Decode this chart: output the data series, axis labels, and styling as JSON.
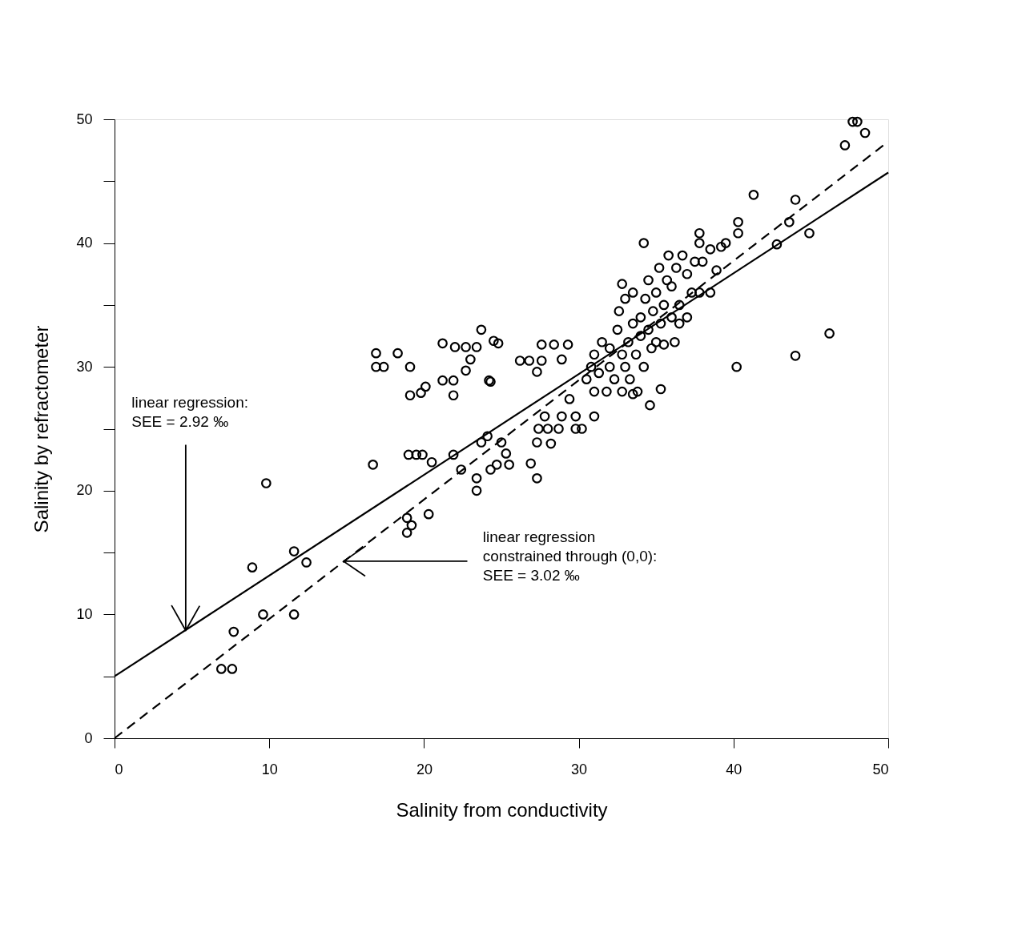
{
  "chart_data": {
    "type": "scatter",
    "xlabel": "Salinity from conductivity",
    "ylabel": "Salinity by refractometer",
    "xlim": [
      0,
      50
    ],
    "ylim": [
      0,
      50
    ],
    "xticks": [
      0,
      10,
      20,
      30,
      40,
      50
    ],
    "yticks": [
      0,
      {
        "value": 5,
        "label": null
      },
      10,
      {
        "value": 15,
        "label": null
      },
      20,
      {
        "value": 25,
        "label": null
      },
      30,
      {
        "value": 35,
        "label": null
      },
      40,
      {
        "value": 45,
        "label": null
      },
      50
    ],
    "grid": false,
    "series": [
      {
        "type": "scatter",
        "marker": "circle",
        "color": "#000000",
        "x": [
          6.9,
          7.6,
          7.7,
          8.9,
          9.6,
          9.8,
          11.6,
          11.6,
          12.4,
          16.7,
          16.9,
          16.9,
          17.4,
          18.3,
          19.1,
          19.1,
          19.8,
          20.1,
          18.9,
          18.9,
          19.2,
          19.0,
          19.5,
          19.9,
          20.3,
          20.5,
          21.2,
          21.2,
          21.9,
          21.9,
          21.9,
          22.0,
          22.4,
          22.7,
          22.7,
          23.0,
          23.4,
          23.4,
          23.4,
          23.7,
          23.7,
          24.1,
          24.2,
          24.5,
          24.3,
          24.8,
          24.3,
          24.7,
          25.0,
          25.3,
          25.5,
          26.2,
          26.8,
          26.9,
          27.3,
          27.3,
          27.3,
          27.6,
          27.6,
          28.4,
          28.9,
          29.3,
          27.4,
          28.0,
          27.8,
          28.2,
          28.7,
          28.9,
          29.4,
          29.8,
          29.8,
          30.2,
          31.0,
          30.5,
          30.8,
          31.0,
          31.0,
          31.3,
          31.5,
          31.8,
          32.0,
          32.0,
          32.3,
          32.5,
          32.6,
          32.8,
          32.8,
          33.0,
          33.0,
          33.2,
          33.3,
          33.5,
          33.5,
          33.7,
          33.8,
          34.0,
          34.0,
          34.2,
          34.3,
          34.5,
          34.5,
          34.7,
          34.8,
          35.0,
          35.0,
          35.2,
          35.3,
          35.5,
          35.5,
          35.7,
          35.8,
          36.0,
          36.0,
          36.2,
          36.3,
          36.5,
          36.7,
          37.0,
          37.0,
          37.3,
          37.5,
          37.8,
          38.0,
          38.5,
          38.5,
          39.5,
          36.5,
          33.5,
          35.3,
          32.8,
          34.2,
          34.6,
          37.8,
          37.8,
          38.9,
          39.2,
          40.2,
          40.3,
          40.3,
          41.3,
          42.8,
          43.6,
          44.0,
          44.0,
          44.9,
          46.2,
          47.2,
          47.7,
          48.0,
          48.5
        ],
        "values": [
          5.6,
          5.6,
          8.6,
          13.8,
          10.0,
          20.6,
          15.1,
          10.0,
          14.2,
          22.1,
          31.1,
          30.0,
          30.0,
          31.1,
          30.0,
          27.7,
          27.9,
          28.4,
          17.8,
          16.6,
          17.2,
          22.9,
          22.9,
          22.9,
          18.1,
          22.3,
          31.9,
          28.9,
          27.7,
          28.9,
          22.9,
          31.6,
          21.7,
          31.6,
          29.7,
          30.6,
          20.0,
          21.0,
          31.6,
          33.0,
          23.9,
          24.4,
          28.9,
          32.1,
          28.8,
          31.9,
          21.7,
          22.1,
          23.9,
          23.0,
          22.1,
          30.5,
          30.5,
          22.2,
          23.9,
          29.6,
          21.0,
          31.8,
          30.5,
          31.8,
          30.6,
          31.8,
          25.0,
          25.0,
          26.0,
          23.8,
          25.0,
          26.0,
          27.4,
          26.0,
          25.0,
          25.0,
          26.0,
          29.0,
          30.0,
          31.0,
          28.0,
          29.5,
          32.0,
          28.0,
          30.0,
          31.5,
          29.0,
          33.0,
          34.5,
          31.0,
          28.0,
          35.5,
          30.0,
          32.0,
          29.0,
          33.5,
          36.0,
          31.0,
          28.0,
          34.0,
          32.5,
          30.0,
          35.5,
          33.0,
          37.0,
          31.5,
          34.5,
          36.0,
          32.0,
          38.0,
          33.5,
          35.0,
          31.8,
          37.0,
          39.0,
          34.0,
          36.5,
          32.0,
          38.0,
          35.0,
          39.0,
          37.5,
          34.0,
          36.0,
          38.5,
          36.0,
          38.5,
          36.0,
          39.5,
          40.0,
          33.5,
          27.8,
          28.2,
          36.7,
          40.0,
          26.9,
          40.0,
          40.8,
          37.8,
          39.7,
          30.0,
          40.8,
          41.7,
          43.9,
          39.9,
          41.7,
          43.5,
          30.9,
          40.8,
          32.7,
          47.9,
          49.8,
          49.8,
          48.9
        ]
      },
      {
        "type": "line",
        "marker": "none",
        "color": "#000000",
        "line_style": "solid",
        "x": [
          0,
          50
        ],
        "values": [
          5,
          45.7
        ]
      },
      {
        "type": "line",
        "marker": "none",
        "color": "#000000",
        "line_style": "dashed",
        "x": [
          0,
          50
        ],
        "values": [
          0,
          48.2
        ]
      }
    ],
    "annotations": [
      "linear regression:\nSEE = 2.92 ‰",
      "linear regression\nconstrained through (0,0):\nSEE =  3.02 ‰"
    ]
  }
}
